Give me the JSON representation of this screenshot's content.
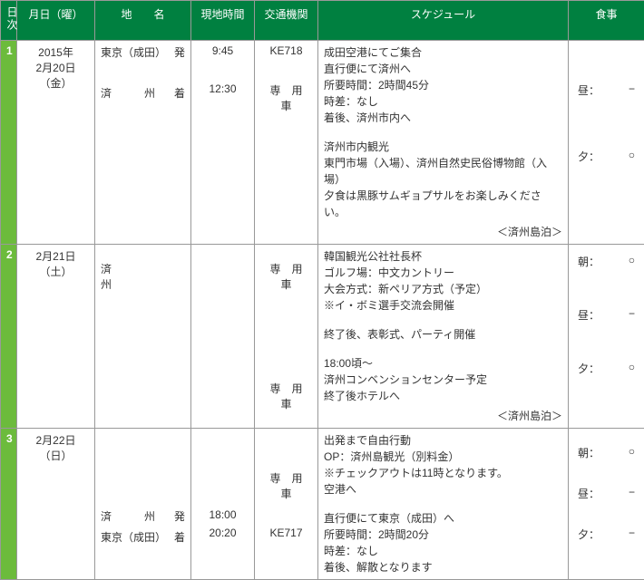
{
  "headers": {
    "day": "日次",
    "date": "月日（曜）",
    "place": "地　　名",
    "time": "現地時間",
    "transport": "交通機関",
    "schedule": "スケジュール",
    "meal": "食事"
  },
  "rows": [
    {
      "day": "1",
      "date1": "2015年",
      "date2": "2月20日",
      "date3": "（金）",
      "place1a": "東京（成田）",
      "place1b": "発",
      "place2a": "済　　　州",
      "place2b": "着",
      "time1": "9:45",
      "time2": "12:30",
      "trans1": "KE718",
      "trans2": "専　用　車",
      "sched1": "成田空港にてご集合",
      "sched2": "直行便にて済州へ",
      "sched3": "所要時間：2時間45分",
      "sched4": "時差：なし",
      "sched5": "着後、済州市内へ",
      "sched6": "済州市内観光",
      "sched7": "東門市場（入場）、済州自然史民俗博物館（入場）",
      "sched8": "夕食は黒豚サムギョプサルをお楽しみください。",
      "stay": "＜済州島泊＞",
      "meal1a": "昼：",
      "meal1b": "−",
      "meal2a": "夕：",
      "meal2b": "○"
    },
    {
      "day": "2",
      "date1": "2月21日",
      "date2": "（土）",
      "place1a": "済　　　　　　州",
      "place1b": "",
      "trans1": "専　用　車",
      "trans2": "専　用　車",
      "sched1": "韓国観光公社社長杯",
      "sched2": "ゴルフ場：中文カントリー",
      "sched3": "大会方式：新ペリア方式（予定）",
      "sched4": "※イ・ボミ選手交流会開催",
      "sched5": "終了後、表彰式、パーティ開催",
      "sched6": "18:00頃～",
      "sched7": "済州コンベンションセンター予定",
      "sched8": "終了後ホテルへ",
      "stay": "＜済州島泊＞",
      "meal1a": "朝：",
      "meal1b": "○",
      "meal2a": "昼：",
      "meal2b": "−",
      "meal3a": "夕：",
      "meal3b": "○"
    },
    {
      "day": "3",
      "date1": "2月22日",
      "date2": "（日）",
      "place1a": "済　　　州",
      "place1b": "発",
      "place2a": "東京（成田）",
      "place2b": "着",
      "time1": "18:00",
      "time2": "20:20",
      "trans1": "専　用　車",
      "trans2": "KE717",
      "sched1": "出発まで自由行動",
      "sched2": "OP：済州島観光（別料金）",
      "sched3": "※チェックアウトは11時となります。",
      "sched4": "空港へ",
      "sched5": "直行便にて東京（成田）へ",
      "sched6": "所要時間：2時間20分",
      "sched7": "時差：なし",
      "sched8": "着後、解散となります",
      "meal1a": "朝：",
      "meal1b": "○",
      "meal2a": "昼：",
      "meal2b": "−",
      "meal3a": "夕：",
      "meal3b": "−"
    }
  ]
}
